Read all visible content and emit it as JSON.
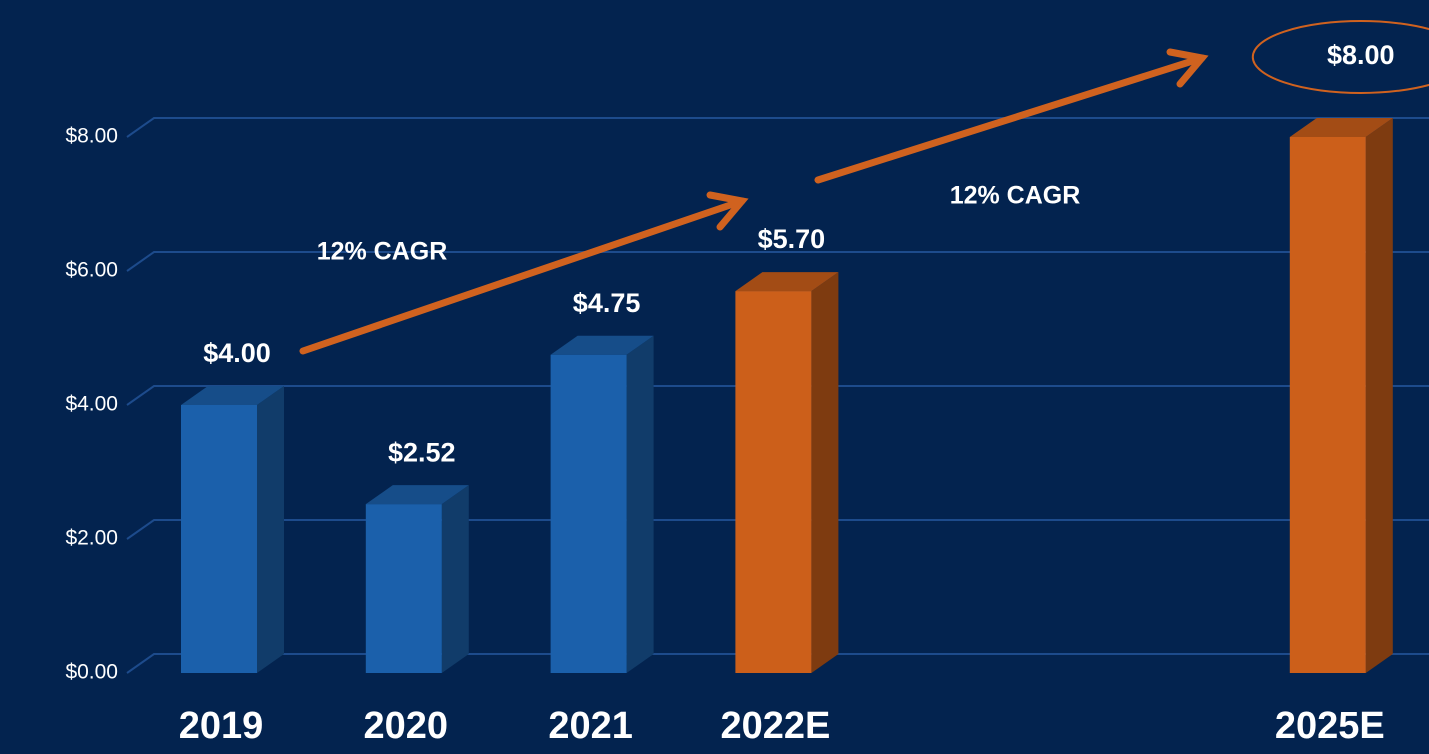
{
  "chart_data": {
    "type": "bar3d",
    "categories": [
      "2019",
      "2020",
      "2021",
      "2022E",
      null,
      null,
      "2025E"
    ],
    "values": [
      4.0,
      2.52,
      4.75,
      5.7,
      null,
      null,
      8.0
    ],
    "value_labels": [
      "$4.00",
      "$2.52",
      "$4.75",
      "$5.70",
      null,
      null,
      "$8.00"
    ],
    "colors": [
      "#1b60ab",
      "#1b60ab",
      "#1b60ab",
      "#cc5f1a",
      null,
      null,
      "#cc5f1a"
    ],
    "ylim": [
      0,
      8
    ],
    "yticks": [
      {
        "value": 0,
        "label": "$0.00"
      },
      {
        "value": 2,
        "label": "$2.00"
      },
      {
        "value": 4,
        "label": "$4.00"
      },
      {
        "value": 6,
        "label": "$6.00"
      },
      {
        "value": 8,
        "label": "$8.00"
      }
    ],
    "grid": true,
    "annotations": [
      "12% CAGR",
      "12% CAGR"
    ]
  }
}
